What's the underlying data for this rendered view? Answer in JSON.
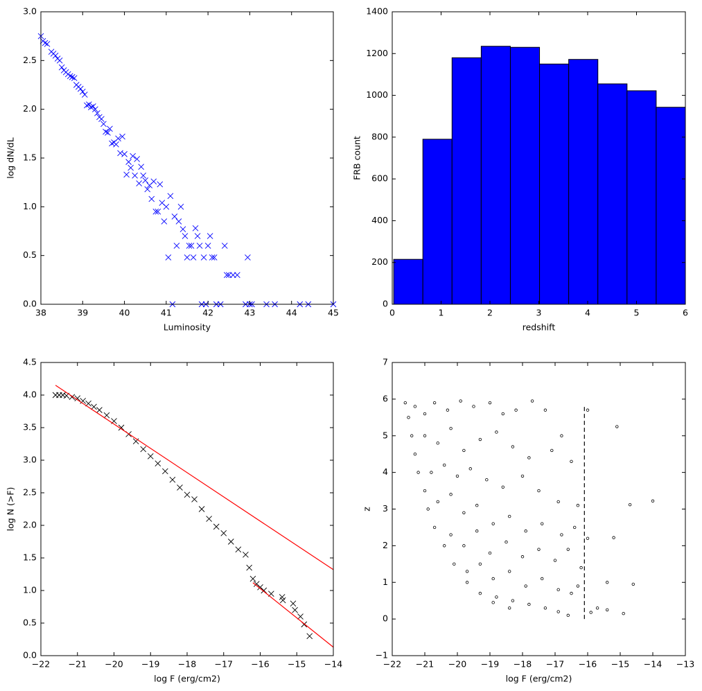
{
  "chart_data": [
    {
      "type": "scatter",
      "xlabel": "Luminosity",
      "ylabel": "log dN/dL",
      "marker": "x",
      "color": "#0000ff",
      "xlim": [
        38,
        45
      ],
      "ylim": [
        0,
        3
      ],
      "xticks": [
        38,
        39,
        40,
        41,
        42,
        43,
        44,
        45
      ],
      "yticks": [
        {
          "value": 0,
          "label": "0.0"
        },
        0.5,
        {
          "value": 1,
          "label": "1.0"
        },
        1.5,
        {
          "value": 2,
          "label": "2.0"
        },
        2.5,
        {
          "value": 3,
          "label": "3.0"
        }
      ],
      "x": [
        38.0,
        38.05,
        38.1,
        38.15,
        38.25,
        38.3,
        38.35,
        38.4,
        38.45,
        38.5,
        38.55,
        38.6,
        38.65,
        38.7,
        38.75,
        38.8,
        38.85,
        38.9,
        38.95,
        39.0,
        39.05,
        39.1,
        39.15,
        39.2,
        39.25,
        39.3,
        39.35,
        39.4,
        39.45,
        39.5,
        39.55,
        39.6,
        39.65,
        39.7,
        39.75,
        39.8,
        39.85,
        39.9,
        39.95,
        40.0,
        40.05,
        40.1,
        40.15,
        40.2,
        40.25,
        40.3,
        40.35,
        40.4,
        40.45,
        40.5,
        40.55,
        40.6,
        40.65,
        40.7,
        40.75,
        40.8,
        40.85,
        40.9,
        40.95,
        41.0,
        41.05,
        41.1,
        41.15,
        41.2,
        41.25,
        41.3,
        41.35,
        41.4,
        41.45,
        41.5,
        41.55,
        41.6,
        41.65,
        41.7,
        41.75,
        41.8,
        41.85,
        41.9,
        41.95,
        42.0,
        42.05,
        42.1,
        42.15,
        42.2,
        42.3,
        42.4,
        42.45,
        42.5,
        42.6,
        42.7,
        42.9,
        42.95,
        43.0,
        43.05,
        43.4,
        43.6,
        44.2,
        44.4,
        45.0
      ],
      "values": [
        2.75,
        2.7,
        2.68,
        2.67,
        2.59,
        2.57,
        2.55,
        2.52,
        2.5,
        2.43,
        2.4,
        2.38,
        2.36,
        2.34,
        2.33,
        2.32,
        2.25,
        2.23,
        2.21,
        2.18,
        2.15,
        2.04,
        2.05,
        2.02,
        2.03,
        2.0,
        1.96,
        1.92,
        1.9,
        1.85,
        1.77,
        1.76,
        1.8,
        1.65,
        1.66,
        1.64,
        1.7,
        1.55,
        1.72,
        1.54,
        1.33,
        1.46,
        1.4,
        1.52,
        1.32,
        1.49,
        1.24,
        1.41,
        1.32,
        1.27,
        1.18,
        1.22,
        1.08,
        1.26,
        0.95,
        0.95,
        1.23,
        1.04,
        0.85,
        1.0,
        0.48,
        1.11,
        0.0,
        0.9,
        0.6,
        0.85,
        1.0,
        0.77,
        0.7,
        0.48,
        0.6,
        0.6,
        0.48,
        0.78,
        0.7,
        0.6,
        0.0,
        0.48,
        0.0,
        0.6,
        0.7,
        0.48,
        0.48,
        0.0,
        0.0,
        0.6,
        0.3,
        0.3,
        0.3,
        0.3,
        0.0,
        0.48,
        0.0,
        0.0,
        0.0,
        0.0,
        0.0,
        0.0,
        0.0
      ]
    },
    {
      "type": "histogram",
      "xlabel": "redshift",
      "ylabel": "FRB count",
      "color": "#0000ff",
      "edgecolor": "#000000",
      "xlim": [
        0,
        6
      ],
      "ylim": [
        0,
        1400
      ],
      "xticks": [
        0,
        1,
        2,
        3,
        4,
        5,
        6
      ],
      "yticks": [
        0,
        200,
        400,
        600,
        800,
        1000,
        1200,
        1400
      ],
      "bins": [
        0.03,
        0.627,
        1.224,
        1.821,
        2.418,
        3.015,
        3.612,
        4.209,
        4.806,
        5.403,
        6.0
      ],
      "values": [
        215,
        790,
        1180,
        1235,
        1230,
        1150,
        1172,
        1055,
        1022,
        943
      ]
    },
    {
      "type": "scatter",
      "xlabel": "log F (erg/cm2)",
      "ylabel": "log N (>F)",
      "xlim": [
        -22,
        -14
      ],
      "ylim": [
        0,
        4.5
      ],
      "xticks": [
        {
          "value": -22,
          "label": "−22"
        },
        {
          "value": -21,
          "label": "−21"
        },
        {
          "value": -20,
          "label": "−20"
        },
        {
          "value": -19,
          "label": "−19"
        },
        {
          "value": -18,
          "label": "−18"
        },
        {
          "value": -17,
          "label": "−17"
        },
        {
          "value": -16,
          "label": "−16"
        },
        {
          "value": -15,
          "label": "−15"
        },
        {
          "value": -14,
          "label": "−14"
        }
      ],
      "yticks": [
        {
          "value": 0,
          "label": "0.0"
        },
        0.5,
        {
          "value": 1,
          "label": "1.0"
        },
        1.5,
        {
          "value": 2,
          "label": "2.0"
        },
        2.5,
        {
          "value": 3,
          "label": "3.0"
        },
        3.5,
        {
          "value": 4,
          "label": "4.0"
        },
        4.5
      ],
      "series": [
        {
          "type": "scatter",
          "marker": "x",
          "color": "#000000",
          "x": [
            -21.6,
            -21.5,
            -21.4,
            -21.3,
            -21.15,
            -21.0,
            -20.85,
            -20.7,
            -20.55,
            -20.4,
            -20.2,
            -20.0,
            -19.8,
            -19.6,
            -19.4,
            -19.2,
            -19.0,
            -18.8,
            -18.6,
            -18.4,
            -18.2,
            -18.0,
            -17.8,
            -17.6,
            -17.4,
            -17.2,
            -17.0,
            -16.8,
            -16.6,
            -16.4,
            -16.3,
            -16.2,
            -16.1,
            -16.0,
            -15.9,
            -15.7,
            -15.4,
            -15.38,
            -15.1,
            -15.05,
            -14.9,
            -14.8,
            -14.65
          ],
          "values": [
            4.0,
            4.0,
            4.0,
            3.99,
            3.97,
            3.95,
            3.91,
            3.87,
            3.82,
            3.77,
            3.69,
            3.6,
            3.5,
            3.4,
            3.29,
            3.17,
            3.06,
            2.95,
            2.83,
            2.7,
            2.58,
            2.47,
            2.4,
            2.25,
            2.1,
            1.98,
            1.88,
            1.75,
            1.63,
            1.55,
            1.35,
            1.18,
            1.1,
            1.05,
            1.0,
            0.95,
            0.9,
            0.85,
            0.8,
            0.7,
            0.6,
            0.48,
            0.3
          ]
        },
        {
          "type": "line",
          "color": "#ff0000",
          "x": [
            -21.6,
            -14
          ],
          "values": [
            4.15,
            1.32
          ]
        },
        {
          "type": "line",
          "color": "#ff0000",
          "x": [
            -16.2,
            -14
          ],
          "values": [
            1.12,
            0.13
          ]
        }
      ]
    },
    {
      "type": "scatter",
      "xlabel": "log F (erg/cm2)",
      "ylabel": "z",
      "xlim": [
        -22,
        -13
      ],
      "ylim": [
        -1,
        7
      ],
      "xticks": [
        {
          "value": -22,
          "label": "−22"
        },
        {
          "value": -21,
          "label": "−21"
        },
        {
          "value": -20,
          "label": "−20"
        },
        {
          "value": -19,
          "label": "−19"
        },
        {
          "value": -18,
          "label": "−18"
        },
        {
          "value": -17,
          "label": "−17"
        },
        {
          "value": -16,
          "label": "−16"
        },
        {
          "value": -15,
          "label": "−15"
        },
        {
          "value": -14,
          "label": "−14"
        },
        {
          "value": -13,
          "label": "−13"
        }
      ],
      "yticks": [
        {
          "value": -1,
          "label": "−1"
        },
        0,
        1,
        2,
        3,
        4,
        5,
        6,
        7
      ],
      "series": [
        {
          "type": "scatter",
          "marker": "o",
          "color": "#000000",
          "x": [
            -21.6,
            -21.5,
            -21.4,
            -21.3,
            -21.2,
            -21.0,
            -20.9,
            -20.7,
            -20.4,
            -20.1,
            -19.7,
            -19.3,
            -18.9,
            -18.4,
            -21.3,
            -21.0,
            -20.7,
            -20.3,
            -19.9,
            -19.5,
            -19.0,
            -18.6,
            -18.2,
            -17.7,
            -17.3,
            -21.0,
            -20.6,
            -20.2,
            -19.8,
            -19.3,
            -18.8,
            -18.3,
            -17.8,
            -17.1,
            -16.8,
            -16.5,
            -20.8,
            -20.4,
            -20.0,
            -19.6,
            -19.1,
            -18.6,
            -18.0,
            -17.5,
            -16.9,
            -16.3,
            -20.6,
            -20.2,
            -19.8,
            -19.4,
            -18.9,
            -18.4,
            -17.9,
            -17.4,
            -16.8,
            -16.4,
            -20.2,
            -19.8,
            -19.4,
            -19.0,
            -18.5,
            -18.0,
            -17.5,
            -17.0,
            -16.6,
            -16.2,
            -19.7,
            -19.3,
            -18.9,
            -18.4,
            -17.9,
            -17.4,
            -16.9,
            -16.5,
            -16.3,
            -18.8,
            -18.3,
            -17.8,
            -17.3,
            -16.9,
            -16.6,
            -16.0,
            -15.1,
            -14.0,
            -14.7,
            -16.0,
            -15.2,
            -15.4,
            -14.6,
            -15.7,
            -15.4,
            -14.9,
            -15.9
          ],
          "values": [
            5.9,
            5.5,
            5.0,
            4.5,
            4.0,
            3.5,
            3.0,
            2.5,
            2.0,
            1.5,
            1.0,
            0.7,
            0.45,
            0.3,
            5.8,
            5.6,
            5.9,
            5.7,
            5.95,
            5.8,
            5.9,
            5.6,
            5.7,
            5.95,
            5.7,
            5.0,
            4.8,
            5.2,
            4.6,
            4.9,
            5.1,
            4.7,
            4.4,
            4.6,
            5.0,
            4.3,
            4.0,
            4.2,
            3.9,
            4.1,
            3.8,
            3.6,
            3.9,
            3.5,
            3.2,
            3.1,
            3.2,
            3.4,
            2.9,
            3.1,
            2.6,
            2.8,
            2.4,
            2.6,
            2.3,
            2.5,
            2.3,
            2.0,
            2.4,
            1.8,
            2.1,
            1.7,
            1.9,
            1.6,
            1.9,
            1.4,
            1.3,
            1.5,
            1.1,
            1.3,
            0.9,
            1.1,
            0.8,
            0.7,
            0.9,
            0.6,
            0.5,
            0.4,
            0.3,
            0.2,
            0.1,
            5.7,
            5.25,
            3.22,
            3.12,
            2.2,
            2.22,
            1.0,
            0.95,
            0.3,
            0.25,
            0.15,
            0.18
          ]
        },
        {
          "type": "line",
          "color": "#000000",
          "style": "dashed",
          "x": [
            -16.1,
            -16.1
          ],
          "values": [
            0,
            5.86
          ]
        }
      ]
    }
  ]
}
